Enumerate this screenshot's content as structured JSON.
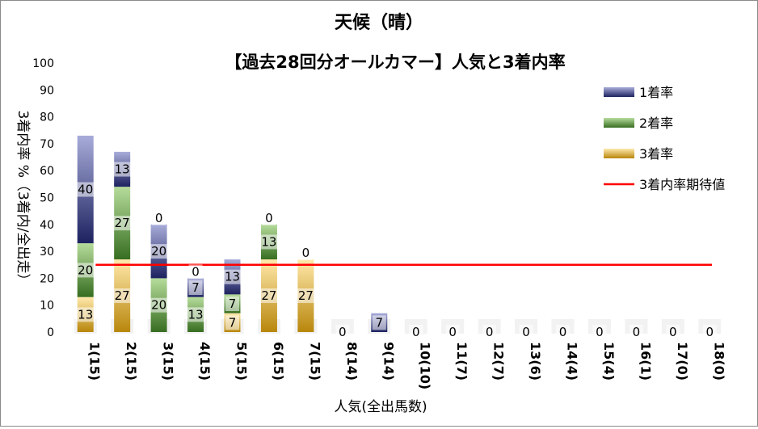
{
  "chart_data": {
    "type": "bar",
    "stacked": true,
    "title": "天候（晴）",
    "subtitle": "【過去28回分オールカマー】人気と3着内率",
    "xlabel": "人気(全出馬数)",
    "ylabel": "3着内率 %（3着内/全出走）",
    "ylim": [
      0,
      100
    ],
    "yticks": [
      0,
      10,
      20,
      30,
      40,
      50,
      60,
      70,
      80,
      90,
      100
    ],
    "grid": false,
    "legend_position": "top-right",
    "categories": [
      "1(15)",
      "2(15)",
      "3(15)",
      "4(15)",
      "5(15)",
      "6(15)",
      "7(15)",
      "8(14)",
      "9(14)",
      "10(10)",
      "11(7)",
      "12(7)",
      "13(6)",
      "14(4)",
      "15(4)",
      "16(1)",
      "17(0)",
      "18(0)"
    ],
    "series": [
      {
        "name": "3着率",
        "values": [
          13,
          27,
          0,
          0,
          7,
          27,
          27,
          0,
          0,
          0,
          0,
          0,
          0,
          0,
          0,
          0,
          0,
          0
        ],
        "labels": [
          "13",
          "27",
          "0",
          "0",
          "7",
          "27",
          "27",
          "0",
          "",
          "0",
          "0",
          "0",
          "0",
          "0",
          "0",
          "0",
          "0",
          "0"
        ]
      },
      {
        "name": "2着率",
        "values": [
          20,
          27,
          20,
          13,
          7,
          13,
          0,
          0,
          0,
          0,
          0,
          0,
          0,
          0,
          0,
          0,
          0,
          0
        ],
        "labels": [
          "20",
          "27",
          "20",
          "13",
          "7",
          "13",
          "",
          "",
          "",
          "",
          "",
          "",
          "",
          "",
          "",
          "",
          "",
          ""
        ]
      },
      {
        "name": "1着率",
        "values": [
          40,
          13,
          20,
          7,
          13,
          0,
          0,
          0,
          7,
          0,
          0,
          0,
          0,
          0,
          0,
          0,
          0,
          0
        ],
        "labels": [
          "40",
          "13",
          "20",
          "7",
          "13",
          "0",
          "0",
          "",
          "7",
          "",
          "",
          "",
          "",
          "",
          "",
          "",
          "",
          ""
        ]
      }
    ],
    "reference_line": {
      "name": "3着内率期待値",
      "value": 25
    },
    "legend": [
      "1着率",
      "2着率",
      "3着率",
      "3着内率期待値"
    ],
    "colors": {
      "win": "#2a2f6e",
      "win_light": "#a8acd9",
      "place2": "#3e7a25",
      "place2_light": "#a9d28c",
      "place3": "#b8860b",
      "place3_light": "#ffe29a",
      "line": "#ff0000",
      "text": "#000000",
      "label_bg": "#ffffff"
    }
  }
}
